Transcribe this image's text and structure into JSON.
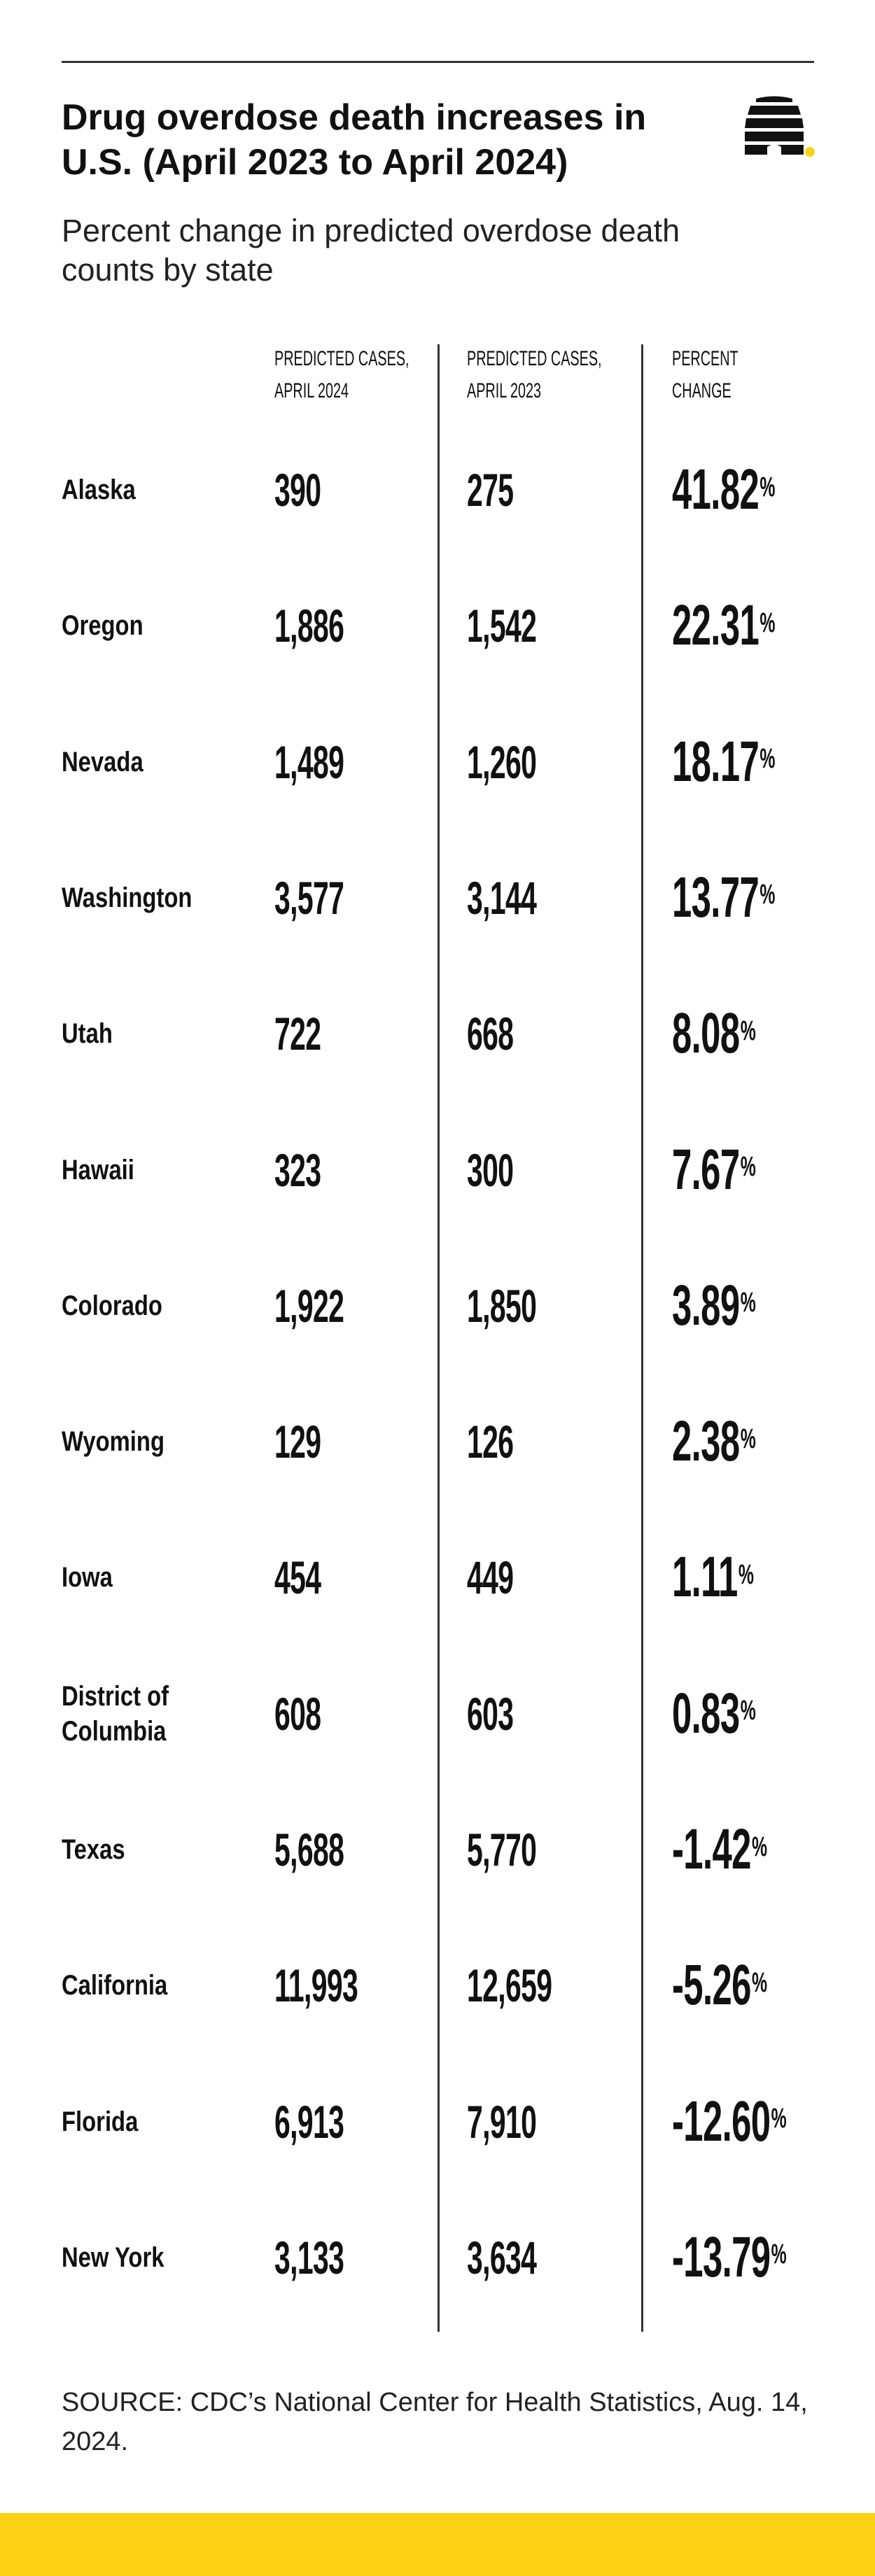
{
  "title": "Drug overdose death increases in U.S. (April 2023 to April 2024)",
  "subtitle": "Percent change in predicted overdose death counts by state",
  "columns": {
    "april_2024": "PREDICTED CASES,\nAPRIL 2024",
    "april_2023": "PREDICTED CASES,\nAPRIL 2023",
    "percent_change": "PERCENT\nCHANGE"
  },
  "source": "SOURCE: CDC’s National Center for Health Statistics, Aug. 14, 2024.",
  "colors": {
    "accent_yellow": "#fcd116",
    "text": "#111111",
    "rule": "#333333"
  },
  "logo_icon": "beehive-icon",
  "chart_data": {
    "type": "table",
    "title": "Drug overdose death increases in U.S. (April 2023 to April 2024)",
    "subtitle": "Percent change in predicted overdose death counts by state",
    "columns": [
      "",
      "PREDICTED CASES, APRIL 2024",
      "PREDICTED CASES, APRIL 2023",
      "PERCENT CHANGE"
    ],
    "rows": [
      {
        "state": "Alaska",
        "apr2024": "390",
        "apr2023": "275",
        "change": "41.82"
      },
      {
        "state": "Oregon",
        "apr2024": "1,886",
        "apr2023": "1,542",
        "change": "22.31"
      },
      {
        "state": "Nevada",
        "apr2024": "1,489",
        "apr2023": "1,260",
        "change": "18.17"
      },
      {
        "state": "Washington",
        "apr2024": "3,577",
        "apr2023": "3,144",
        "change": "13.77"
      },
      {
        "state": "Utah",
        "apr2024": "722",
        "apr2023": "668",
        "change": "8.08"
      },
      {
        "state": "Hawaii",
        "apr2024": "323",
        "apr2023": "300",
        "change": "7.67"
      },
      {
        "state": "Colorado",
        "apr2024": "1,922",
        "apr2023": "1,850",
        "change": "3.89"
      },
      {
        "state": "Wyoming",
        "apr2024": "129",
        "apr2023": "126",
        "change": "2.38"
      },
      {
        "state": "Iowa",
        "apr2024": "454",
        "apr2023": "449",
        "change": "1.11"
      },
      {
        "state": "District of Columbia",
        "apr2024": "608",
        "apr2023": "603",
        "change": "0.83"
      },
      {
        "state": "Texas",
        "apr2024": "5,688",
        "apr2023": "5,770",
        "change": "-1.42"
      },
      {
        "state": "California",
        "apr2024": "11,993",
        "apr2023": "12,659",
        "change": "-5.26"
      },
      {
        "state": "Florida",
        "apr2024": "6,913",
        "apr2023": "7,910",
        "change": "-12.60"
      },
      {
        "state": "New York",
        "apr2024": "3,133",
        "apr2023": "3,634",
        "change": "-13.79"
      }
    ],
    "percent_symbol": "%"
  }
}
